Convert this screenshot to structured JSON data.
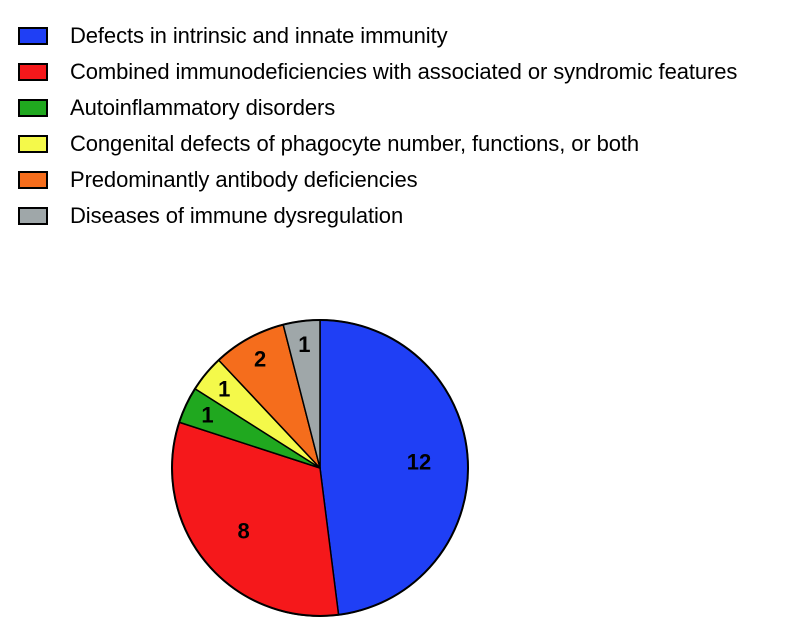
{
  "chart_data": {
    "type": "pie",
    "start_angle_deg": 0,
    "direction": "clockwise",
    "series": [
      {
        "name": "Defects in intrinsic and innate immunity",
        "value": 12,
        "color": "#1f3ff5"
      },
      {
        "name": "Combined immunodeficiencies with associated or syndromic features",
        "value": 8,
        "color": "#f5181b"
      },
      {
        "name": "Autoinflammatory disorders",
        "value": 1,
        "color": "#20a81f"
      },
      {
        "name": "Congenital defects of phagocyte number, functions, or both",
        "value": 1,
        "color": "#f4f94a"
      },
      {
        "name": "Predominantly antibody deficiencies",
        "value": 2,
        "color": "#f56d1c"
      },
      {
        "name": "Diseases of immune dysregulation",
        "value": 1,
        "color": "#9fa7a9"
      }
    ],
    "legend_position": "top-left",
    "data_labels": true
  }
}
